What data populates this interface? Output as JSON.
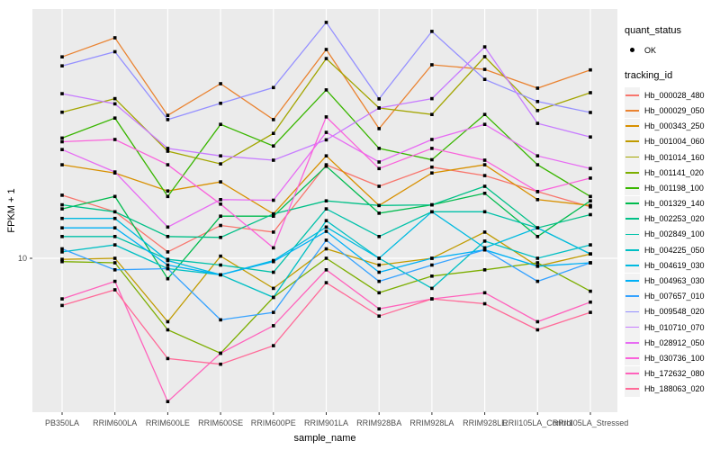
{
  "figure": {
    "y_axis_title": "FPKM + 1",
    "x_axis_title": "sample_name"
  },
  "legend": {
    "quant_status": {
      "title": "quant_status",
      "items": [
        {
          "symbol": "point",
          "label": "OK"
        }
      ]
    },
    "tracking_id": {
      "title": "tracking_id"
    }
  },
  "colors": {
    "panel_background": "#ebebeb",
    "gridline": "#ffffff",
    "point": "#000000",
    "tick_mark": "#333333",
    "tick_text": "#4d4d4d"
  },
  "chart_data": {
    "type": "line",
    "title": "",
    "xlabel": "sample_name",
    "ylabel": "FPKM + 1",
    "y_scale": "log10",
    "y_tick_labels": [
      "10"
    ],
    "y_tick_values": [
      10
    ],
    "ylim_approx": [
      2.3,
      97
    ],
    "grid": "vertical-major-and-y10",
    "legend_position": "right",
    "point_shape": "small-black-square",
    "categories": [
      "PB350LA",
      "RRIM600LA",
      "RRIM600LE",
      "RRIM600SE",
      "RRIM600PE",
      "RRIM901LA",
      "RRIM928BA",
      "RRIM928LA",
      "RRIM928LE",
      "RRII105LA_Control",
      "RRII105LA_Stressed"
    ],
    "series": [
      {
        "name": "Hb_000028_480",
        "color": "#F8766D",
        "values": [
          17.8,
          15.3,
          10.6,
          13.5,
          12.7,
          23.5,
          19.3,
          23.0,
          21.3,
          18.4,
          16.0
        ]
      },
      {
        "name": "Hb_000029_050",
        "color": "#EA8331",
        "values": [
          63.0,
          75.0,
          36.9,
          49.3,
          35.5,
          67.4,
          32.7,
          58.6,
          56.2,
          47.3,
          55.9
        ]
      },
      {
        "name": "Hb_000343_250",
        "color": "#D89000",
        "values": [
          23.5,
          21.8,
          18.5,
          20.1,
          15.0,
          25.5,
          16.2,
          21.8,
          23.5,
          17.1,
          16.2
        ]
      },
      {
        "name": "Hb_001004_060",
        "color": "#C09B00",
        "values": [
          9.9,
          10.0,
          5.6,
          10.2,
          7.6,
          10.9,
          9.4,
          10.0,
          12.7,
          9.3,
          10.4
        ]
      },
      {
        "name": "Hb_001014_160",
        "color": "#A3A500",
        "values": [
          38.0,
          43.0,
          26.6,
          23.7,
          31.3,
          62.0,
          39.5,
          37.2,
          63.1,
          38.6,
          45.4
        ]
      },
      {
        "name": "Hb_001141_020",
        "color": "#7CAE00",
        "values": [
          9.7,
          9.6,
          5.2,
          4.2,
          7.0,
          10.0,
          7.3,
          8.5,
          9.0,
          9.6,
          7.4
        ]
      },
      {
        "name": "Hb_001198_100",
        "color": "#39B600",
        "values": [
          30.0,
          36.0,
          17.6,
          34.0,
          27.9,
          46.6,
          27.3,
          24.6,
          37.2,
          23.5,
          17.6
        ]
      },
      {
        "name": "Hb_001329_140",
        "color": "#00BB4E",
        "values": [
          15.7,
          17.6,
          8.3,
          14.7,
          14.7,
          23.2,
          15.1,
          16.3,
          18.1,
          12.2,
          16.9
        ]
      },
      {
        "name": "Hb_002253_020",
        "color": "#00C087",
        "values": [
          16.3,
          15.3,
          12.2,
          12.1,
          15.0,
          16.9,
          16.2,
          16.3,
          19.3,
          13.2,
          14.9
        ]
      },
      {
        "name": "Hb_002849_100",
        "color": "#00C1A9",
        "values": [
          12.2,
          12.2,
          9.9,
          9.4,
          8.8,
          15.7,
          12.2,
          15.3,
          15.3,
          13.2,
          10.4
        ]
      },
      {
        "name": "Hb_004225_050",
        "color": "#00BFC4",
        "values": [
          10.6,
          11.3,
          9.1,
          8.6,
          7.0,
          14.1,
          10.0,
          7.6,
          11.7,
          10.0,
          11.3
        ]
      },
      {
        "name": "Hb_004619_030",
        "color": "#00BAE0",
        "values": [
          14.4,
          14.4,
          9.8,
          8.6,
          9.8,
          13.3,
          10.0,
          15.3,
          11.0,
          13.2,
          10.4
        ]
      },
      {
        "name": "Hb_004963_030",
        "color": "#00B0F6",
        "values": [
          13.2,
          13.2,
          9.4,
          8.6,
          9.7,
          12.8,
          8.8,
          10.0,
          10.8,
          9.3,
          9.6
        ]
      },
      {
        "name": "Hb_007657_010",
        "color": "#35A2FF",
        "values": [
          10.9,
          9.0,
          9.1,
          5.7,
          6.1,
          11.8,
          8.1,
          9.4,
          10.8,
          8.1,
          9.6
        ]
      },
      {
        "name": "Hb_009548_020",
        "color": "#9590FF",
        "values": [
          58.0,
          66.0,
          35.5,
          41.2,
          47.6,
          86.3,
          42.9,
          79.5,
          51.3,
          41.9,
          37.9
        ]
      },
      {
        "name": "Hb_010710_070",
        "color": "#C77CFF",
        "values": [
          45.0,
          41.0,
          27.3,
          25.5,
          24.5,
          29.5,
          39.5,
          43.0,
          69.0,
          34.3,
          30.3
        ]
      },
      {
        "name": "Hb_028912_050",
        "color": "#E76BF3",
        "values": [
          27.0,
          22.0,
          13.3,
          17.1,
          17.0,
          31.6,
          24.1,
          29.6,
          34.0,
          25.5,
          22.7
        ]
      },
      {
        "name": "Hb_030736_100",
        "color": "#FA62DB",
        "values": [
          29.0,
          29.6,
          23.5,
          16.4,
          11.0,
          36.4,
          22.7,
          27.3,
          24.5,
          18.4,
          20.8
        ]
      },
      {
        "name": "Hb_172632_080",
        "color": "#FF62BC",
        "values": [
          6.9,
          8.1,
          2.7,
          4.2,
          5.4,
          9.0,
          6.3,
          6.9,
          7.3,
          5.6,
          6.7
        ]
      },
      {
        "name": "Hb_188063_020",
        "color": "#FF6A98",
        "values": [
          6.5,
          7.5,
          4.0,
          3.8,
          4.5,
          8.0,
          5.9,
          6.9,
          6.6,
          5.2,
          6.1
        ]
      }
    ]
  }
}
